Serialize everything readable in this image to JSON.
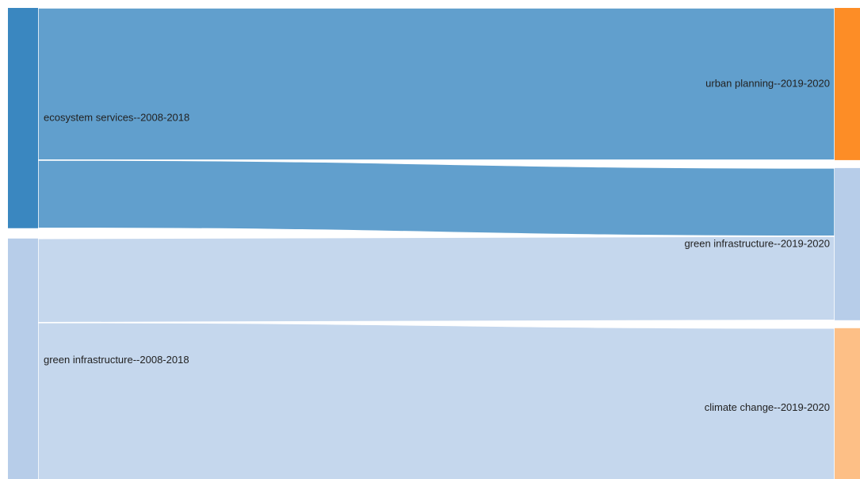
{
  "chart_data": {
    "type": "sankey",
    "nodes": [
      {
        "label": "ecosystem services--2008-2018",
        "color": "#3a87c0"
      },
      {
        "label": "green infrastructure--2008-2018",
        "color": "#b7cde9"
      },
      {
        "label": "urban planning--2019-2020",
        "color": "#fd8d26"
      },
      {
        "label": "green infrastructure--2019-2020",
        "color": "#b7cde9"
      },
      {
        "label": "climate change--2019-2020",
        "color": "#fdbf86"
      }
    ],
    "links": [
      {
        "source": 0,
        "target": 2,
        "value": 19
      },
      {
        "source": 0,
        "target": 3,
        "value": 8.5
      },
      {
        "source": 1,
        "target": 3,
        "value": 10.5
      },
      {
        "source": 1,
        "target": 4,
        "value": 20
      }
    ]
  }
}
